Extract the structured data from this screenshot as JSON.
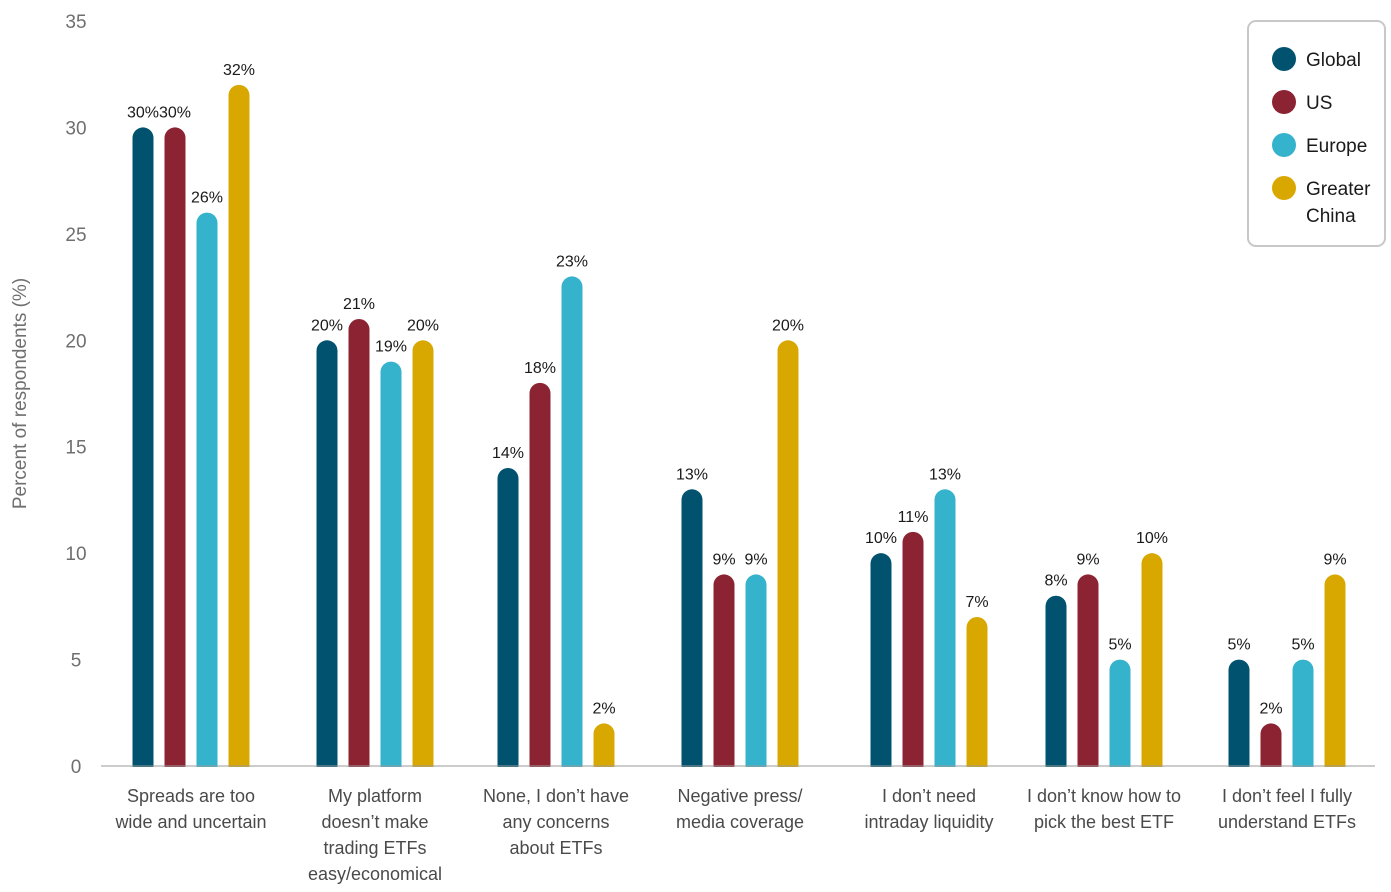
{
  "chart_data": {
    "type": "bar",
    "title": "",
    "xlabel": "",
    "ylabel": "Percent of respondents (%)",
    "ylim": [
      0,
      35
    ],
    "yticks": [
      0,
      5,
      10,
      15,
      20,
      25,
      30,
      35
    ],
    "grid": false,
    "legend_position": "top-right",
    "categories": [
      "Spreads are too wide and uncertain",
      "My platform doesn’t make trading ETFs easy/economical",
      "None, I don’t have any concerns about ETFs",
      "Negative press/ media coverage",
      "I don’t need intraday liquidity",
      "I don’t know how to pick the best ETF",
      "I don’t feel I fully understand ETFs"
    ],
    "category_label_lines": [
      [
        "Spreads are too",
        "wide and uncertain"
      ],
      [
        "My platform",
        "doesn’t make",
        "trading ETFs",
        "easy/economical"
      ],
      [
        "None, I don’t have",
        "any concerns",
        "about ETFs"
      ],
      [
        "Negative press/",
        "media coverage"
      ],
      [
        "I don’t need",
        "intraday liquidity"
      ],
      [
        "I don’t know how to",
        "pick the best ETF"
      ],
      [
        "I don’t feel I fully",
        "understand ETFs"
      ]
    ],
    "series": [
      {
        "name": "Global",
        "color": "#00526f",
        "values": [
          30,
          20,
          14,
          13,
          10,
          8,
          5
        ]
      },
      {
        "name": "US",
        "color": "#8c2332",
        "values": [
          30,
          21,
          18,
          9,
          11,
          9,
          2
        ]
      },
      {
        "name": "Europe",
        "color": "#35b2cc",
        "values": [
          26,
          19,
          23,
          9,
          13,
          5,
          5
        ]
      },
      {
        "name": "Greater China",
        "color": "#d9a800",
        "values": [
          32,
          20,
          2,
          20,
          7,
          10,
          9
        ]
      }
    ],
    "legend_label_lines": [
      [
        "Global"
      ],
      [
        "US"
      ],
      [
        "Europe"
      ],
      [
        "Greater",
        "China"
      ]
    ],
    "value_suffix": "%"
  }
}
